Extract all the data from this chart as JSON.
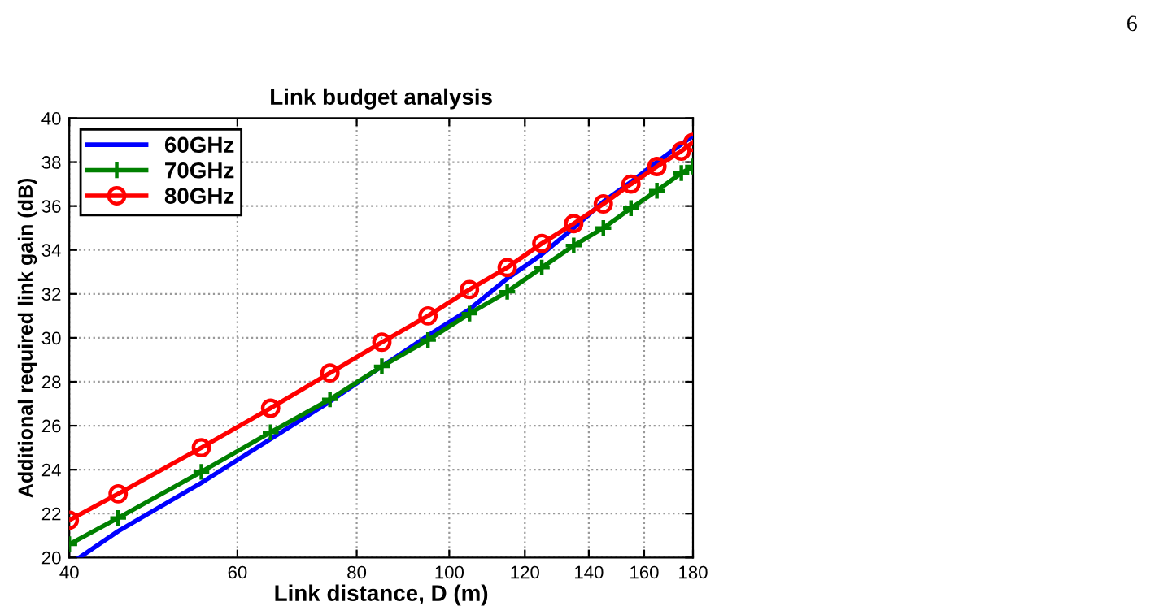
{
  "chart_data": {
    "type": "line",
    "title": "Link budget analysis",
    "xlabel": "Link distance, D (m)",
    "ylabel": "Additional required link gain (dB)",
    "annotations": [
      "6"
    ],
    "log": "x",
    "xlim": [
      40,
      180
    ],
    "xticks": [
      40,
      60,
      80,
      100,
      120,
      140,
      160,
      180
    ],
    "ylim": [
      20,
      40
    ],
    "yticks": [
      20,
      22,
      24,
      26,
      28,
      30,
      32,
      34,
      36,
      38,
      40
    ],
    "grid": true,
    "legend": "top left",
    "line_style": "solid",
    "series": [
      {
        "name": "60GHz",
        "color": "#0000ff",
        "marker": "none",
        "x": [
          41,
          45,
          55,
          65,
          75,
          85,
          95,
          105,
          115,
          125,
          135,
          145,
          155,
          165,
          180
        ],
        "values": [
          20.0,
          21.2,
          23.4,
          25.4,
          27.1,
          28.7,
          30.1,
          31.3,
          32.7,
          33.8,
          35.0,
          36.2,
          37.1,
          38.0,
          39.2
        ]
      },
      {
        "name": "70GHz",
        "color": "#008000",
        "marker": "cross",
        "x": [
          40,
          45,
          55,
          65,
          75,
          85,
          95,
          105,
          115,
          125,
          135,
          145,
          155,
          165,
          175,
          180
        ],
        "values": [
          20.6,
          21.8,
          23.9,
          25.7,
          27.2,
          28.7,
          29.9,
          31.1,
          32.1,
          33.2,
          34.2,
          35.0,
          35.9,
          36.7,
          37.5,
          37.8
        ]
      },
      {
        "name": "80GHz",
        "color": "#ff0000",
        "marker": "circle",
        "x": [
          40,
          45,
          55,
          65,
          75,
          85,
          95,
          105,
          115,
          125,
          135,
          145,
          155,
          165,
          175,
          180
        ],
        "values": [
          21.7,
          22.9,
          25.0,
          26.8,
          28.4,
          29.8,
          31.0,
          32.2,
          33.2,
          34.3,
          35.2,
          36.1,
          37.0,
          37.8,
          38.5,
          38.9
        ]
      }
    ]
  }
}
